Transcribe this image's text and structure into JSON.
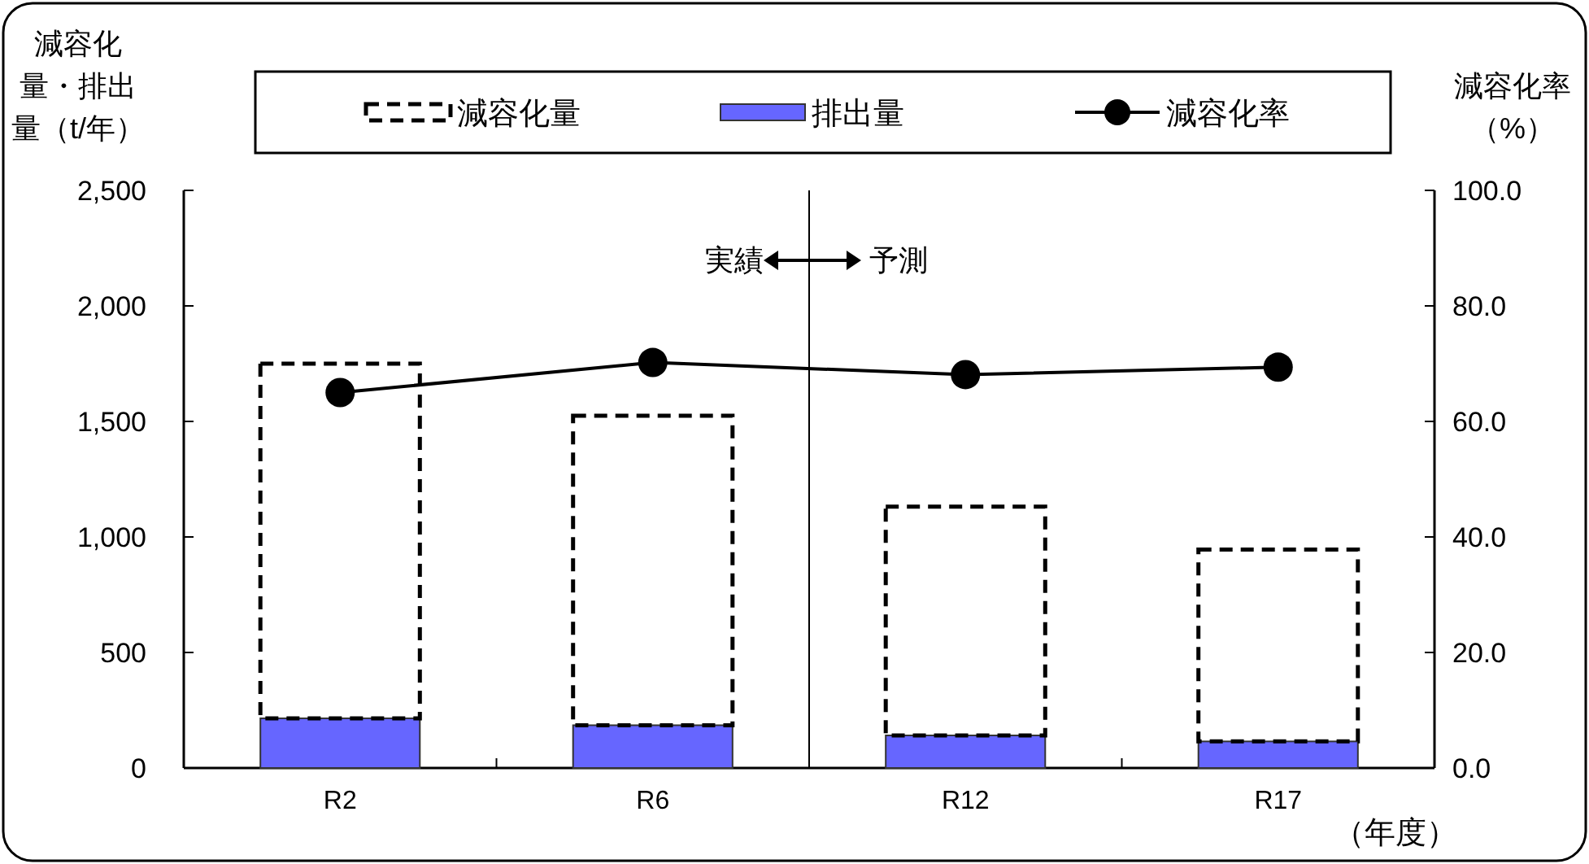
{
  "chart_data": {
    "type": "bar",
    "stacked": true,
    "categories": [
      "R2",
      "R6",
      "R12",
      "R17"
    ],
    "series": [
      {
        "name": "排出量",
        "color": "#6666ff",
        "values": [
          215,
          185,
          141,
          115
        ]
      },
      {
        "name": "減容化量",
        "color": "#000000",
        "line_style": "dashed",
        "values": [
          1535,
          1340,
          990,
          830
        ]
      },
      {
        "name": "減容化率",
        "type": "line",
        "axis": "y2",
        "color": "#000000",
        "marker": "circle",
        "values": [
          65.0,
          70.2,
          68.1,
          69.4
        ]
      }
    ],
    "ylabel": "減容化量・排出量（t/年）",
    "y2label": "減容化率（%）",
    "xlabel": "（年度）",
    "ylim": [
      0,
      2500
    ],
    "yticks": [
      0,
      500,
      {
        "value": 1000,
        "label": "1,000"
      },
      {
        "value": 1500,
        "label": "1,500"
      },
      {
        "value": 2000,
        "label": "2,000"
      },
      {
        "value": 2500,
        "label": "2,500"
      }
    ],
    "y2lim": [
      0,
      100
    ],
    "y2ticks": [
      {
        "value": 0,
        "label": "0.0"
      },
      {
        "value": 20,
        "label": "20.0"
      },
      {
        "value": 40,
        "label": "40.0"
      },
      {
        "value": 60,
        "label": "60.0"
      },
      {
        "value": 80,
        "label": "80.0"
      },
      {
        "value": 100,
        "label": "100.0"
      }
    ],
    "annotations": [
      "実績",
      "予測"
    ],
    "legend": "top",
    "grid": false
  }
}
